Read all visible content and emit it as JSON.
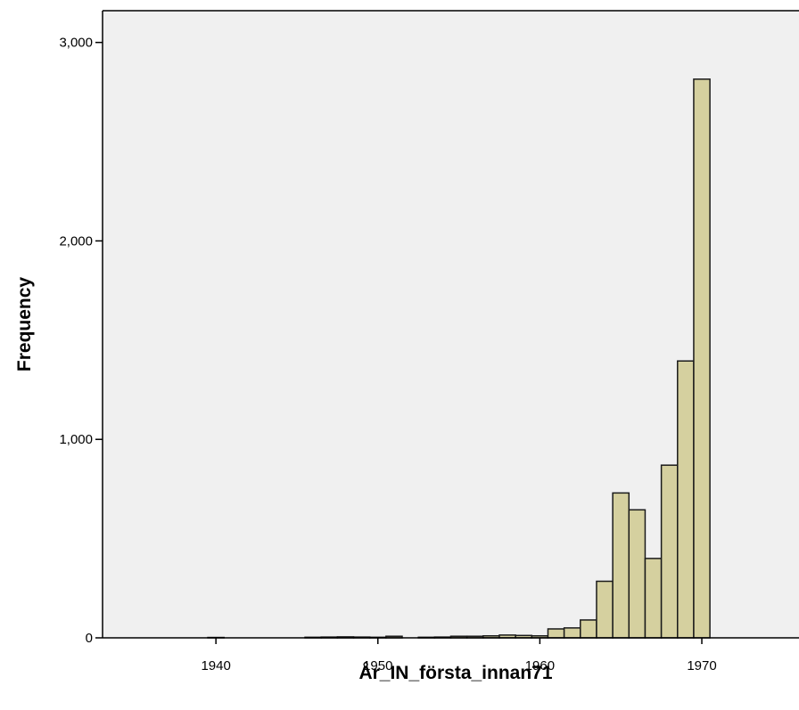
{
  "chart_data": {
    "type": "bar",
    "title": "",
    "xlabel": "År_IN_första_innan71",
    "ylabel": "Frequency",
    "xlim": [
      1933,
      1976
    ],
    "ylim": [
      0,
      3160
    ],
    "x_ticks": [
      1940,
      1950,
      1960,
      1970
    ],
    "x_tick_labels": [
      "1940",
      "1950",
      "1960",
      "1970"
    ],
    "y_ticks": [
      0,
      1000,
      2000,
      3000
    ],
    "y_tick_labels": [
      "0",
      "1,000",
      "2,000",
      "3,000"
    ],
    "bin_width": 1,
    "bin_starts": [
      1939.5,
      1945.5,
      1946.5,
      1947.5,
      1948.5,
      1949.5,
      1950.5,
      1952.5,
      1953.5,
      1954.5,
      1955.5,
      1956.5,
      1957.5,
      1958.5,
      1959.5,
      1960.5,
      1961.5,
      1962.5,
      1963.5,
      1964.5,
      1965.5,
      1966.5,
      1967.5,
      1968.5,
      1969.5
    ],
    "values": [
      2,
      3,
      4,
      5,
      4,
      3,
      8,
      3,
      4,
      8,
      8,
      10,
      14,
      12,
      10,
      45,
      50,
      90,
      285,
      730,
      645,
      400,
      870,
      1395,
      2815
    ],
    "grid": false,
    "legend": "none",
    "colors": {
      "bar_fill": "#d5d09f",
      "bar_stroke": "#1a1a1a",
      "plot_background": "#f0f0f0",
      "axis": "#000000"
    }
  }
}
